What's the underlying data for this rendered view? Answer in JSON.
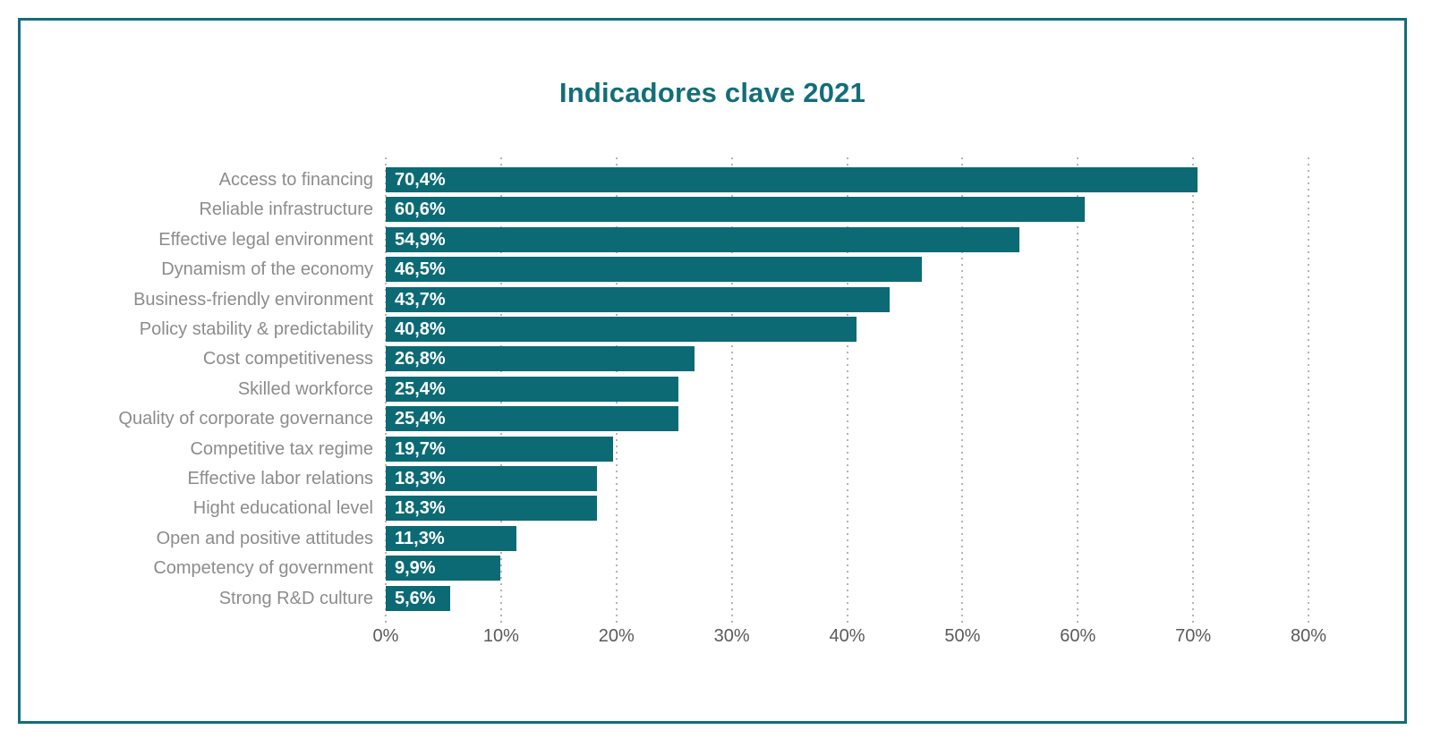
{
  "title": "Indicadores clave 2021",
  "colors": {
    "background": "#ffffff",
    "bar": "#0c6a75",
    "title": "#136e79",
    "frame_border": "#136e79",
    "category_label": "#8c8c8c",
    "axis_label": "#5a5a5a",
    "gridline": "#b4b4b4",
    "value_label": "#ffffff"
  },
  "chart_data": {
    "type": "bar",
    "orientation": "horizontal",
    "title": "Indicadores clave 2021",
    "categories": [
      "Access to financing",
      "Reliable infrastructure",
      "Effective legal environment",
      "Dynamism of the economy",
      "Business-friendly environment",
      "Policy stability & predictability",
      "Cost competitiveness",
      "Skilled workforce",
      "Quality of corporate governance",
      "Competitive tax regime",
      "Effective labor relations",
      "Hight educational level",
      "Open and positive attitudes",
      "Competency of government",
      "Strong R&D culture"
    ],
    "values": [
      70.4,
      60.6,
      54.9,
      46.5,
      43.7,
      40.8,
      26.8,
      25.4,
      25.4,
      19.7,
      18.3,
      18.3,
      11.3,
      9.9,
      5.6
    ],
    "value_labels": [
      "70,4%",
      "60,6%",
      "54,9%",
      "46,5%",
      "43,7%",
      "40,8%",
      "26,8%",
      "25,4%",
      "25,4%",
      "19,7%",
      "18,3%",
      "18,3%",
      "11,3%",
      "9,9%",
      "5,6%"
    ],
    "xlabel": "",
    "ylabel": "",
    "xlim": [
      0,
      80
    ],
    "x_tick_step": 10,
    "x_ticks": [
      "0%",
      "10%",
      "20%",
      "30%",
      "40%",
      "50%",
      "60%",
      "70%",
      "80%"
    ],
    "grid": "vertical-dotted",
    "legend": "none",
    "value_label_position": "inside-left",
    "bar_label_decimal": "comma"
  }
}
